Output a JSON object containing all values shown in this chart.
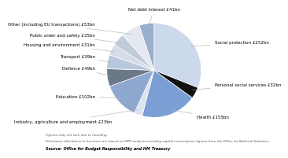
{
  "slices": [
    {
      "label": "Social protection £252bn",
      "value": 252,
      "color": "#ccd9ec"
    },
    {
      "label": "Personal social services £32bn",
      "value": 32,
      "color": "#111111"
    },
    {
      "label": "Health £155bn",
      "value": 155,
      "color": "#7b9fd4"
    },
    {
      "label": "Industry, agriculture and employment £23bn",
      "value": 23,
      "color": "#dce4f0"
    },
    {
      "label": "Education £102bn",
      "value": 102,
      "color": "#8fa8d0"
    },
    {
      "label": "Defence £49bn",
      "value": 49,
      "color": "#6b7888"
    },
    {
      "label": "Transport £39bn",
      "value": 39,
      "color": "#b8c8dc"
    },
    {
      "label": "Housing and environment £31bn",
      "value": 31,
      "color": "#d4dce8"
    },
    {
      "label": "Public order and safety £35bn",
      "value": 35,
      "color": "#c0ccd8"
    },
    {
      "label": "Other (including EU transactions) £53bn",
      "value": 53,
      "color": "#e4e8f0"
    },
    {
      "label": "Net debt interest £41bn",
      "value": 41,
      "color": "#9ab0cc"
    }
  ],
  "start_angle": 90,
  "footnote1": "Figures may not sum due to rounding.",
  "footnote2": "Illustrative allocations to functions are based on HMT analysis including capital consumption figures from the Office for National Statistics.",
  "source": "Source: Office for Budget Responsibility and HM Treasury",
  "label_fontsize": 4.0,
  "footnote_fontsize": 3.0,
  "source_fontsize": 3.5
}
